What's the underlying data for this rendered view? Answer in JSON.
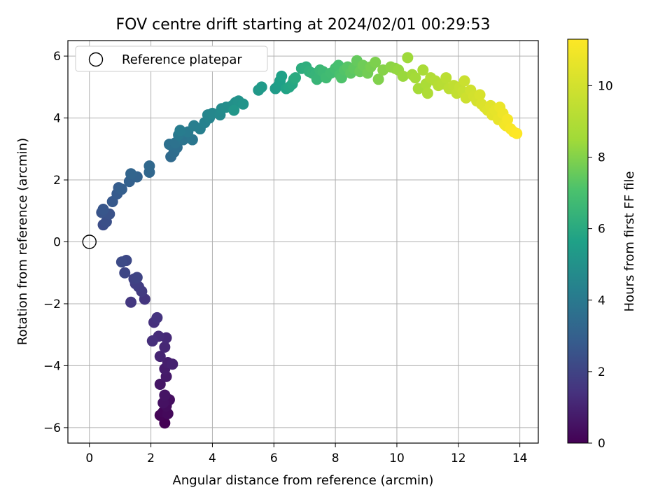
{
  "chart_data": {
    "type": "scatter",
    "title": "FOV centre drift starting at 2024/02/01 00:29:53",
    "xlabel": "Angular distance from reference (arcmin)",
    "ylabel": "Rotation from reference (arcmin)",
    "xlim": [
      -0.7,
      14.6
    ],
    "ylim": [
      -6.5,
      6.5
    ],
    "xticks": [
      0,
      2,
      4,
      6,
      8,
      10,
      12,
      14
    ],
    "yticks": [
      -6,
      -4,
      -2,
      0,
      2,
      4,
      6
    ],
    "grid": true,
    "legend": {
      "position": "top-left",
      "entries": [
        "Reference platepar"
      ]
    },
    "reference_point": {
      "x": 0,
      "y": 0,
      "label": "Reference platepar"
    },
    "colorbar": {
      "label": "Hours from first FF file",
      "colormap": "viridis",
      "range": [
        0,
        11.3
      ],
      "ticks": [
        0,
        2,
        4,
        6,
        8,
        10
      ]
    },
    "series": [
      {
        "points": [
          [
            2.45,
            -5.85
          ],
          [
            2.3,
            -5.6
          ],
          [
            2.4,
            -5.5
          ],
          [
            2.55,
            -5.55
          ],
          [
            2.5,
            -5.3
          ],
          [
            2.6,
            -5.1
          ],
          [
            2.4,
            -5.2
          ],
          [
            2.45,
            -4.95
          ],
          [
            2.3,
            -4.6
          ],
          [
            2.5,
            -4.35
          ],
          [
            2.45,
            -4.1
          ],
          [
            2.55,
            -3.9
          ],
          [
            2.7,
            -3.95
          ],
          [
            2.3,
            -3.7
          ],
          [
            2.45,
            -3.4
          ],
          [
            2.5,
            -3.1
          ],
          [
            2.25,
            -3.05
          ],
          [
            2.05,
            -3.2
          ],
          [
            2.1,
            -2.6
          ],
          [
            2.2,
            -2.45
          ],
          [
            1.8,
            -1.85
          ],
          [
            1.35,
            -1.95
          ],
          [
            1.7,
            -1.6
          ],
          [
            1.6,
            -1.45
          ],
          [
            1.5,
            -1.35
          ],
          [
            1.45,
            -1.2
          ],
          [
            1.55,
            -1.15
          ],
          [
            1.15,
            -1.0
          ],
          [
            1.2,
            -0.6
          ],
          [
            1.05,
            -0.65
          ],
          [
            0.45,
            0.55
          ],
          [
            0.55,
            0.65
          ],
          [
            0.65,
            0.9
          ],
          [
            0.4,
            0.95
          ],
          [
            0.45,
            1.05
          ],
          [
            0.75,
            1.3
          ],
          [
            0.9,
            1.55
          ],
          [
            0.95,
            1.75
          ],
          [
            1.05,
            1.7
          ],
          [
            1.3,
            1.95
          ],
          [
            1.55,
            2.1
          ],
          [
            1.35,
            2.2
          ],
          [
            1.95,
            2.25
          ],
          [
            1.95,
            2.45
          ],
          [
            2.65,
            2.75
          ],
          [
            2.75,
            2.9
          ],
          [
            2.85,
            3.05
          ],
          [
            2.6,
            3.15
          ],
          [
            2.8,
            3.2
          ],
          [
            3.05,
            3.3
          ],
          [
            3.35,
            3.3
          ],
          [
            2.9,
            3.45
          ],
          [
            3.2,
            3.55
          ],
          [
            2.95,
            3.6
          ],
          [
            3.4,
            3.75
          ],
          [
            3.6,
            3.65
          ],
          [
            3.75,
            3.85
          ],
          [
            3.9,
            4.0
          ],
          [
            3.85,
            4.1
          ],
          [
            4.0,
            4.15
          ],
          [
            4.25,
            4.1
          ],
          [
            4.3,
            4.3
          ],
          [
            4.45,
            4.35
          ],
          [
            4.65,
            4.4
          ],
          [
            4.75,
            4.5
          ],
          [
            4.85,
            4.55
          ],
          [
            5.0,
            4.45
          ],
          [
            4.7,
            4.25
          ],
          [
            5.5,
            4.9
          ],
          [
            5.6,
            5.0
          ],
          [
            6.05,
            4.95
          ],
          [
            6.15,
            5.05
          ],
          [
            6.2,
            5.2
          ],
          [
            6.25,
            5.35
          ],
          [
            6.4,
            4.95
          ],
          [
            6.5,
            5.0
          ],
          [
            6.6,
            5.1
          ],
          [
            6.65,
            5.25
          ],
          [
            6.7,
            5.3
          ],
          [
            6.9,
            5.6
          ],
          [
            7.05,
            5.65
          ],
          [
            7.15,
            5.5
          ],
          [
            7.25,
            5.45
          ],
          [
            7.35,
            5.4
          ],
          [
            7.4,
            5.25
          ],
          [
            7.5,
            5.55
          ],
          [
            7.6,
            5.5
          ],
          [
            7.7,
            5.3
          ],
          [
            7.85,
            5.45
          ],
          [
            8.0,
            5.6
          ],
          [
            8.1,
            5.7
          ],
          [
            8.15,
            5.4
          ],
          [
            8.2,
            5.3
          ],
          [
            8.3,
            5.55
          ],
          [
            8.4,
            5.65
          ],
          [
            8.5,
            5.45
          ],
          [
            8.6,
            5.6
          ],
          [
            8.7,
            5.85
          ],
          [
            8.8,
            5.5
          ],
          [
            8.9,
            5.7
          ],
          [
            9.05,
            5.45
          ],
          [
            9.15,
            5.65
          ],
          [
            9.3,
            5.8
          ],
          [
            9.4,
            5.25
          ],
          [
            9.55,
            5.55
          ],
          [
            9.8,
            5.65
          ],
          [
            9.95,
            5.6
          ],
          [
            10.05,
            5.55
          ],
          [
            10.2,
            5.35
          ],
          [
            10.35,
            5.95
          ],
          [
            10.5,
            5.4
          ],
          [
            10.6,
            5.3
          ],
          [
            10.7,
            4.95
          ],
          [
            10.85,
            5.55
          ],
          [
            10.95,
            5.1
          ],
          [
            11.0,
            4.8
          ],
          [
            11.1,
            5.3
          ],
          [
            11.25,
            5.2
          ],
          [
            11.35,
            5.05
          ],
          [
            11.5,
            5.1
          ],
          [
            11.6,
            5.3
          ],
          [
            11.7,
            4.95
          ],
          [
            11.85,
            5.05
          ],
          [
            11.95,
            4.8
          ],
          [
            12.05,
            5.0
          ],
          [
            12.15,
            4.85
          ],
          [
            12.2,
            5.2
          ],
          [
            12.25,
            4.65
          ],
          [
            12.4,
            4.9
          ],
          [
            12.5,
            4.7
          ],
          [
            12.6,
            4.55
          ],
          [
            12.7,
            4.75
          ],
          [
            12.75,
            4.45
          ],
          [
            12.85,
            4.35
          ],
          [
            12.95,
            4.25
          ],
          [
            13.05,
            4.4
          ],
          [
            13.1,
            4.1
          ],
          [
            13.2,
            4.25
          ],
          [
            13.3,
            3.95
          ],
          [
            13.35,
            4.35
          ],
          [
            13.45,
            4.15
          ],
          [
            13.5,
            3.8
          ],
          [
            13.55,
            3.75
          ],
          [
            13.6,
            3.95
          ],
          [
            13.7,
            3.65
          ],
          [
            13.8,
            3.55
          ],
          [
            13.9,
            3.5
          ]
        ]
      }
    ]
  }
}
